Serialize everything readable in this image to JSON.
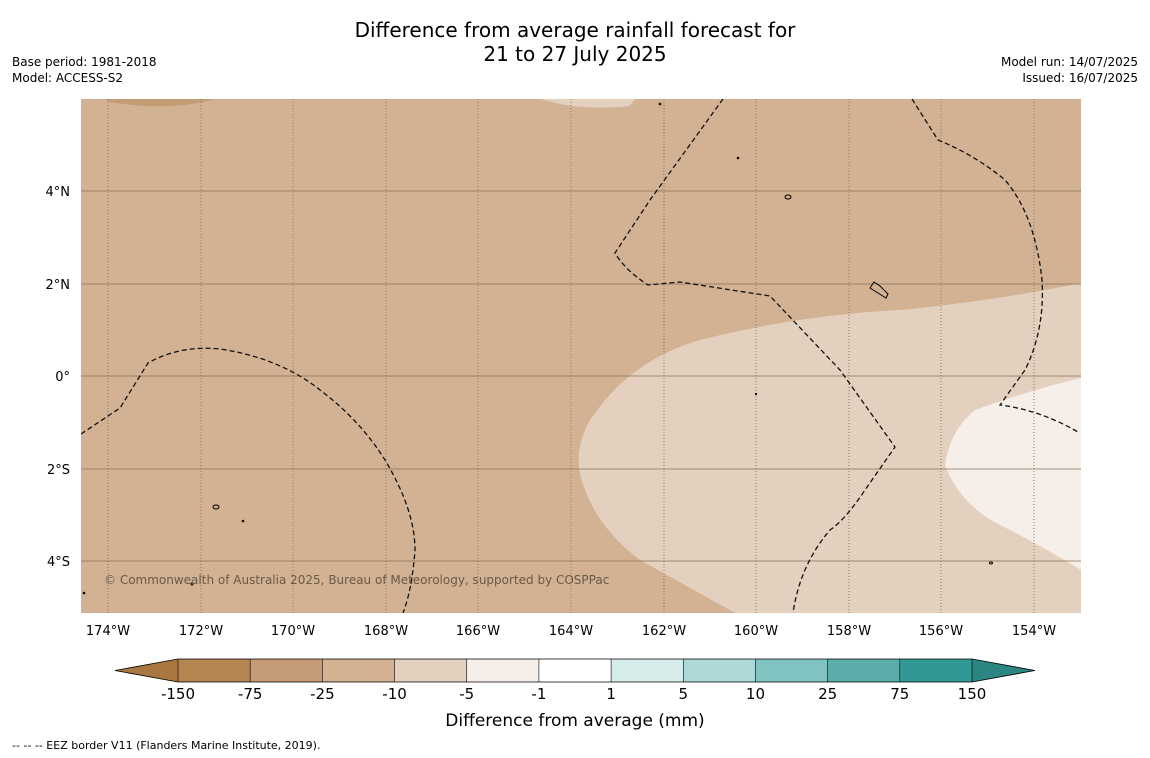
{
  "title": {
    "line1": "Difference from average rainfall forecast for",
    "line2": "21 to 27 July 2025"
  },
  "meta_left": {
    "base_period": "Base period: 1981-2018",
    "model": "Model: ACCESS-S2"
  },
  "meta_right": {
    "model_run": "Model run: 14/07/2025",
    "issued": "Issued: 16/07/2025"
  },
  "map": {
    "lon_labels": [
      "174°W",
      "172°W",
      "170°W",
      "168°W",
      "166°W",
      "164°W",
      "162°W",
      "160°W",
      "158°W",
      "156°W",
      "154°W"
    ],
    "lat_labels": [
      "4°N",
      "2°N",
      "0°",
      "2°S",
      "4°S"
    ],
    "copyright": "© Commonwealth of Australia 2025, Bureau of Meteorology, supported by COSPPac",
    "colors": {
      "class_minus_25_minus_10": "#d2b293",
      "class_minus_10_minus_5": "#e3d0bf",
      "class_minus_5_minus_1": "#f6eee8",
      "class_minus_75_minus_25": "#c39b74"
    }
  },
  "legend": {
    "ticks": [
      "-150",
      "-75",
      "-25",
      "-10",
      "-5",
      "-1",
      "1",
      "5",
      "10",
      "25",
      "75",
      "150"
    ],
    "colors": [
      "#a97840",
      "#b48451",
      "#c69c76",
      "#d4b190",
      "#e3d0bf",
      "#f6efe9",
      "#ffffff",
      "#d5ecea",
      "#acd9d7",
      "#80c3c0",
      "#5aada9",
      "#329894",
      "#2b8580"
    ],
    "label": "Difference from average (mm)"
  },
  "footer": {
    "eez_note": "--  --  -- EEZ border V11 (Flanders Marine Institute, 2019)."
  }
}
